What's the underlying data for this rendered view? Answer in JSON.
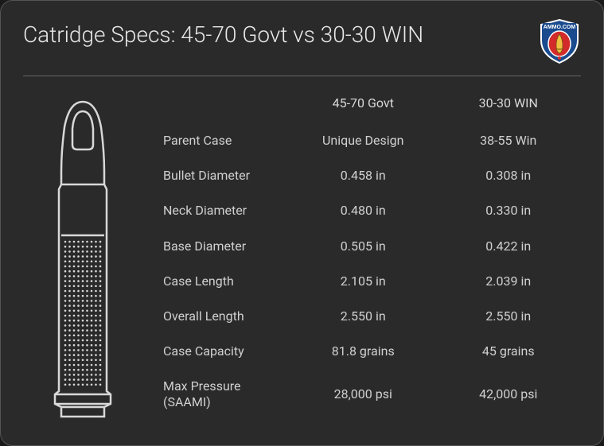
{
  "title": "Catridge Specs: 45-70 Govt vs 30-30 WIN",
  "logo": {
    "text": "AMMO.COM",
    "shield_color": "#1a4b8e",
    "shield_stroke": "#ffffff",
    "accent_color": "#d32a2a",
    "inner_color": "#f0c040"
  },
  "colors": {
    "background": "#2a2a2a",
    "border": "#555555",
    "text": "#d0d0d0",
    "title_text": "#e8e8e8",
    "divider": "#666666",
    "illustration_stroke": "#d8d8d8"
  },
  "comparison": {
    "col1": "45-70 Govt",
    "col2": "30-30 WIN",
    "rows": [
      {
        "label": "Parent Case",
        "v1": "Unique Design",
        "v2": "38-55 Win"
      },
      {
        "label": "Bullet Diameter",
        "v1": "0.458 in",
        "v2": "0.308 in"
      },
      {
        "label": "Neck Diameter",
        "v1": "0.480 in",
        "v2": "0.330 in"
      },
      {
        "label": "Base Diameter",
        "v1": "0.505 in",
        "v2": "0.422 in"
      },
      {
        "label": "Case Length",
        "v1": "2.105 in",
        "v2": "2.039 in"
      },
      {
        "label": "Overall Length",
        "v1": "2.550 in",
        "v2": "2.550 in"
      },
      {
        "label": "Case Capacity",
        "v1": "81.8 grains",
        "v2": "45 grains"
      },
      {
        "label": "Max Pressure\n(SAAMI)",
        "v1": "28,000 psi",
        "v2": "42,000 psi"
      }
    ]
  }
}
